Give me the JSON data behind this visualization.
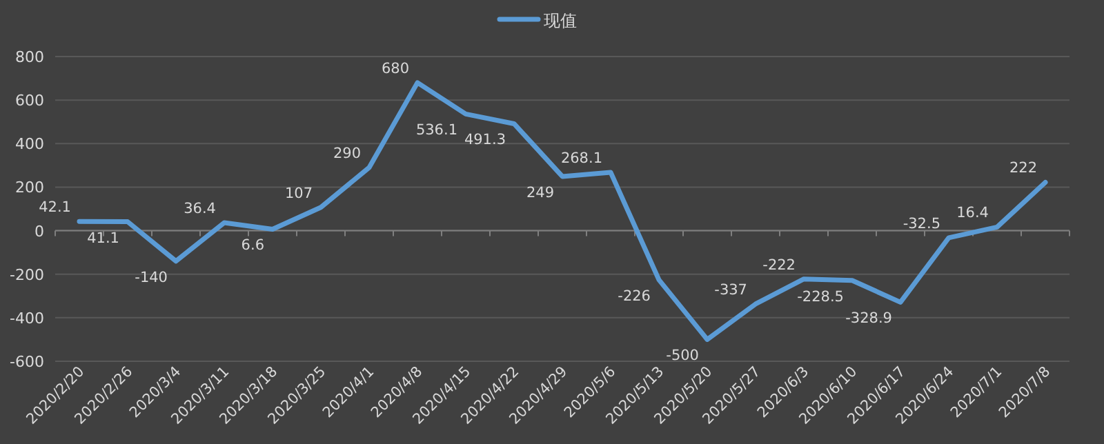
{
  "chart_data": {
    "type": "line",
    "categories": [
      "2020/2/20",
      "2020/2/26",
      "2020/3/4",
      "2020/3/11",
      "2020/3/18",
      "2020/3/25",
      "2020/4/1",
      "2020/4/8",
      "2020/4/15",
      "2020/4/22",
      "2020/4/29",
      "2020/5/6",
      "2020/5/13",
      "2020/5/20",
      "2020/5/27",
      "2020/6/3",
      "2020/6/10",
      "2020/6/17",
      "2020/6/24",
      "2020/7/1",
      "2020/7/8"
    ],
    "series": [
      {
        "name": "现值",
        "color": "#5b9bd5",
        "values": [
          42.1,
          41.1,
          -140,
          36.4,
          6.6,
          107,
          290,
          680,
          536.1,
          491.3,
          249,
          268.1,
          -226,
          -500,
          -337,
          -222,
          -228.5,
          -328.9,
          -32.5,
          16.4,
          222
        ]
      }
    ],
    "ylim": [
      -600,
      800
    ],
    "yticks": [
      -600,
      -400,
      -200,
      0,
      200,
      400,
      600,
      800
    ],
    "grid": "y",
    "legend": "top",
    "data_labels": true,
    "marker": "none",
    "line_style": "solid"
  }
}
